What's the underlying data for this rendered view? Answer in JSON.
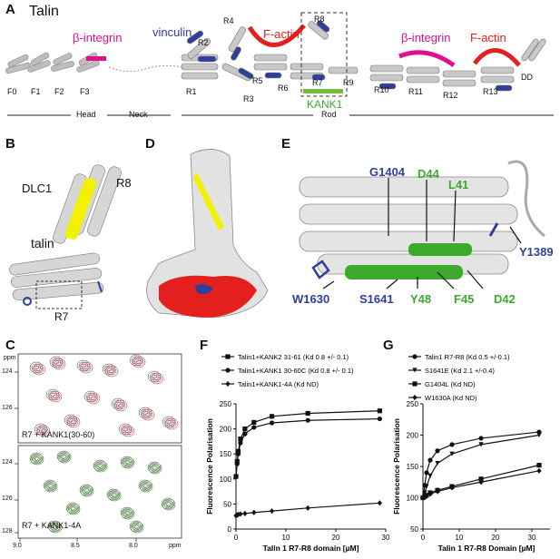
{
  "panelA": {
    "letter": "A",
    "title": "Talin",
    "beta_integrin_1": "β-integrin",
    "vinculin": "vinculin",
    "factin_1": "F-actin",
    "beta_integrin_2": "β-integrin",
    "factin_2": "F-actin",
    "kank1": "KANK1",
    "domains": [
      "F0",
      "F1",
      "F2",
      "F3",
      "R1",
      "R2",
      "R3",
      "R4",
      "R5",
      "R6",
      "R7",
      "R8",
      "R9",
      "R10",
      "R11",
      "R12",
      "R13",
      "DD"
    ],
    "regions": [
      "Head",
      "Neck",
      "Rod"
    ]
  },
  "panelB": {
    "letter": "B",
    "dlc1": "DLC1",
    "r8": "R8",
    "talin": "talin",
    "r7": "R7"
  },
  "panelD": {
    "letter": "D"
  },
  "panelE": {
    "letter": "E",
    "labels": {
      "g1404": "G1404",
      "d44": "D44",
      "l41": "L41",
      "y1389": "Y1389",
      "w1630": "W1630",
      "s1641": "S1641",
      "y48": "Y48",
      "f45": "F45",
      "d42": "D42"
    }
  },
  "panelC": {
    "letter": "C",
    "ppm_top": "ppm",
    "ticks_y_top": [
      "124",
      "126"
    ],
    "label_top": "R7 + KANK1(30-60)",
    "ticks_y_bottom": [
      "124",
      "126",
      "128"
    ],
    "label_bottom": "R7 + KANK1-4A",
    "ticks_x": [
      "9.0",
      "8.5",
      "8.0"
    ],
    "ppm_x": "ppm",
    "ppm_y_bottom": "ppm"
  },
  "panelF": {
    "letter": "F"
  },
  "panelG": {
    "letter": "G"
  },
  "colors": {
    "yellow": "#f2f200",
    "blue": "#2f3f9a",
    "magenta": "#e0108c",
    "red": "#e3201e",
    "green": "#3daa2d",
    "grey": "#b8b8b8",
    "nmr_black": "#3a3a3a",
    "nmr_red": "#c0182b",
    "nmr_green": "#3f8f2a"
  },
  "chart_data": [
    {
      "panel": "F",
      "type": "line",
      "xlabel": "Talin 1 R7-R8 domain [µM]",
      "ylabel": "Fluorescence Polarisation",
      "xlim": [
        0,
        30
      ],
      "ylim": [
        0,
        250
      ],
      "xticks": [
        0,
        10,
        20,
        30
      ],
      "yticks": [
        0,
        50,
        100,
        150,
        200,
        250
      ],
      "legend_position": "top-left",
      "series": [
        {
          "name": "Talin1+KANK2 31-61 (Kd 0.8 +/- 0.1)",
          "marker": "square",
          "x": [
            0,
            0.23,
            0.45,
            0.9,
            1.8,
            3.6,
            7.2,
            14.4,
            28.8
          ],
          "y": [
            105,
            135,
            155,
            180,
            200,
            213,
            225,
            231,
            236
          ]
        },
        {
          "name": "Talin1+KANK1 30-60C (Kd 0.8 +/- 0.1)",
          "marker": "circle",
          "x": [
            0,
            0.23,
            0.45,
            0.9,
            1.8,
            3.6,
            7.2,
            14.4,
            28.8
          ],
          "y": [
            105,
            130,
            150,
            172,
            190,
            203,
            212,
            217,
            220
          ]
        },
        {
          "name": "Talin1+KANK1-4A (Kd ND)",
          "marker": "diamond",
          "x": [
            0,
            0.23,
            0.45,
            0.9,
            1.8,
            3.6,
            7.2,
            14.4,
            28.8
          ],
          "y": [
            27,
            28,
            29,
            30,
            31,
            33,
            36,
            42,
            52
          ]
        }
      ]
    },
    {
      "panel": "G",
      "type": "line",
      "xlabel": "Talin 1 R7-R8 Domain [µM]",
      "ylabel": "Fluorescence Polarisation",
      "xlim": [
        0,
        35
      ],
      "ylim": [
        50,
        250
      ],
      "xticks": [
        0,
        10,
        20,
        30
      ],
      "yticks": [
        50,
        100,
        150,
        200,
        250
      ],
      "legend_position": "top-left",
      "series": [
        {
          "name": "Talin1 R7-R8 (Kd 0.5 +/-0.1)",
          "marker": "circle",
          "x": [
            0,
            0.5,
            1,
            2,
            4,
            8,
            16,
            32
          ],
          "y": [
            100,
            120,
            140,
            160,
            175,
            185,
            195,
            205
          ]
        },
        {
          "name": "S1641E (Kd 2.1 +/-0.4)",
          "marker": "triangle-down",
          "x": [
            0,
            0.5,
            1,
            2,
            4,
            8,
            16,
            32
          ],
          "y": [
            100,
            108,
            118,
            135,
            155,
            170,
            185,
            200
          ]
        },
        {
          "name": "G1404L (Kd ND)",
          "marker": "square",
          "x": [
            0,
            0.5,
            1,
            2,
            4,
            8,
            16,
            32
          ],
          "y": [
            100,
            102,
            104,
            108,
            112,
            118,
            130,
            152
          ]
        },
        {
          "name": "W1630A (Kd ND)",
          "marker": "diamond",
          "x": [
            0,
            0.5,
            1,
            2,
            4,
            8,
            16,
            32
          ],
          "y": [
            100,
            101,
            103,
            106,
            110,
            116,
            125,
            143
          ]
        }
      ]
    }
  ]
}
